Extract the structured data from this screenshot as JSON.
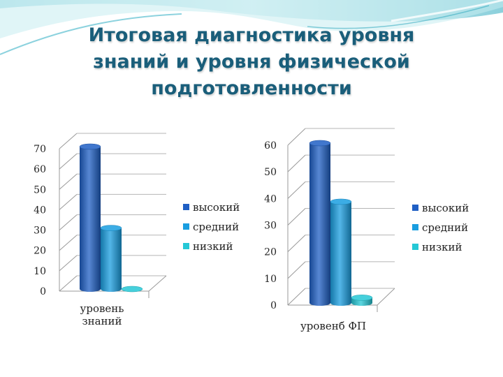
{
  "slide": {
    "title_lines": [
      "Итоговая диагностика уровня",
      "знаний и уровня физической",
      "подготовленности"
    ]
  },
  "colors": {
    "title": "#1a5e7a",
    "series": [
      "#1f5fc4",
      "#1a9ee0",
      "#25c8d6"
    ]
  },
  "chart_data": [
    {
      "type": "bar",
      "style": "3d-cylinder",
      "categories": [
        "уровень знаний"
      ],
      "category_label_lines": [
        "уровень",
        "знаний"
      ],
      "series": [
        {
          "name": "высокий",
          "values": [
            70
          ]
        },
        {
          "name": "средний",
          "values": [
            30
          ]
        },
        {
          "name": "низкий",
          "values": [
            0
          ]
        }
      ],
      "yticks": [
        "0",
        "10",
        "20",
        "30",
        "40",
        "50",
        "60",
        "70"
      ],
      "ylim": [
        0,
        70
      ],
      "grid": true,
      "legend_position": "right"
    },
    {
      "type": "bar",
      "style": "3d-cylinder",
      "categories": [
        "уровенб ФП"
      ],
      "category_label_lines": [
        "уровенб ФП"
      ],
      "series": [
        {
          "name": "высокий",
          "values": [
            60
          ]
        },
        {
          "name": "средний",
          "values": [
            38
          ]
        },
        {
          "name": "низкий",
          "values": [
            2
          ]
        }
      ],
      "yticks": [
        "0",
        "10",
        "20",
        "30",
        "40",
        "50",
        "60"
      ],
      "ylim": [
        0,
        60
      ],
      "grid": true,
      "legend_position": "right"
    }
  ]
}
